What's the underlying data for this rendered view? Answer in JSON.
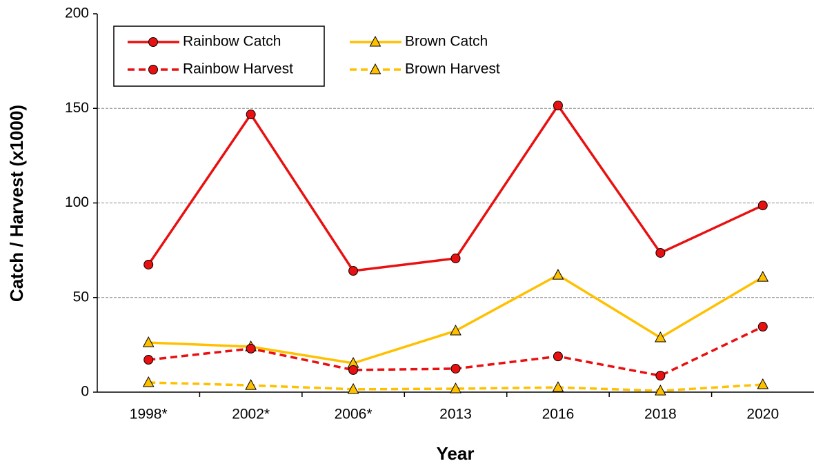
{
  "chart_data": {
    "type": "line",
    "x_label": "Year",
    "y_label": "Catch / Harvest (x1000)",
    "categories": [
      "1998*",
      "2002*",
      "2006*",
      "2013",
      "2016",
      "2018",
      "2020"
    ],
    "series": [
      {
        "name": "Rainbow Catch",
        "color": "#e81010",
        "line_style": "solid",
        "marker": "circle",
        "values": [
          67.4,
          146.8,
          64.1,
          70.7,
          151.5,
          73.6,
          98.7
        ]
      },
      {
        "name": "Brown Catch",
        "color": "#ffc000",
        "line_style": "solid",
        "marker": "triangle",
        "values": [
          26.2,
          24.0,
          15.3,
          32.4,
          61.9,
          28.8,
          60.8
        ]
      },
      {
        "name": "Rainbow Harvest",
        "color": "#e81010",
        "line_style": "dashed",
        "marker": "circle",
        "values": [
          17.1,
          23.0,
          11.7,
          12.4,
          18.9,
          8.7,
          34.6
        ]
      },
      {
        "name": "Brown Harvest",
        "color": "#ffc000",
        "line_style": "dashed",
        "marker": "triangle",
        "values": [
          5.1,
          3.6,
          1.5,
          1.8,
          2.5,
          0.7,
          4.0
        ]
      }
    ],
    "ylim": [
      0,
      200
    ],
    "yticks": [
      0,
      50,
      100,
      150,
      200
    ],
    "grid": true,
    "legend": "top-left"
  }
}
